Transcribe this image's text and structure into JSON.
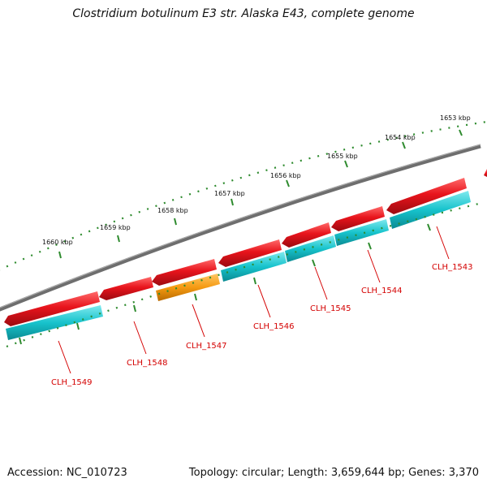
{
  "title": "Clostridium botulinum E3 str. Alaska E43, complete genome",
  "accession_text": "Accession: NC_010723",
  "summary_text": "Topology: circular; Length: 3,659,644 bp; Genes: 3,370",
  "scale_labels": [
    "1653 kbp",
    "1654 kbp",
    "1655 kbp",
    "1656 kbp",
    "1657 kbp",
    "1658 kbp",
    "1659 kbp",
    "1660 kbp"
  ],
  "gene_labels": [
    "CLH_1543",
    "CLH_1544",
    "CLH_1545",
    "CLH_1546",
    "CLH_1547",
    "CLH_1548",
    "CLH_1549"
  ],
  "colors": {
    "forward_gene": "#e8141c",
    "highlight_gene": "#f59a12",
    "cds": "#17c3cc",
    "backbone": "#808080",
    "scale_ticks": "#2e8b2e",
    "label": "#d40000"
  }
}
